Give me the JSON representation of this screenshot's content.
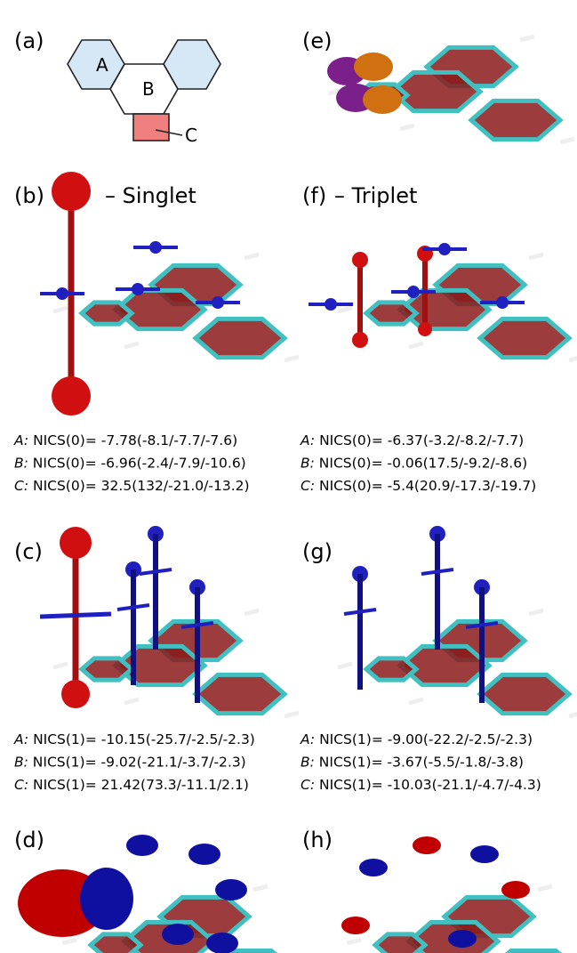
{
  "panel_labels": [
    "(a)",
    "(b)",
    "(c)",
    "(d)",
    "(e)",
    "(f)",
    "(g)",
    "(h)"
  ],
  "scheme_rings": [
    "A",
    "B",
    "C"
  ],
  "titles": {
    "singlet": "– Singlet",
    "triplet": "– Triplet"
  },
  "nics": {
    "singlet_0": [
      {
        "ring": "A:",
        "text": "NICS(0)= -7.78(-8.1/-7.7/-7.6)"
      },
      {
        "ring": "B:",
        "text": "NICS(0)= -6.96(-2.4/-7.9/-10.6)"
      },
      {
        "ring": "C:",
        "text": "NICS(0)= 32.5(132/-21.0/-13.2)"
      }
    ],
    "triplet_0": [
      {
        "ring": "A:",
        "text": "NICS(0)= -6.37(-3.2/-8.2/-7.7)"
      },
      {
        "ring": "B:",
        "text": "NICS(0)= -0.06(17.5/-9.2/-8.6)"
      },
      {
        "ring": "C:",
        "text": "NICS(0)= -5.4(20.9/-17.3/-19.7)"
      }
    ],
    "singlet_1": [
      {
        "ring": "A:",
        "text": "NICS(1)= -10.15(-25.7/-2.5/-2.3)"
      },
      {
        "ring": "B:",
        "text": "NICS(1)= -9.02(-21.1/-3.7/-2.3)"
      },
      {
        "ring": "C:",
        "text": "NICS(1)= 21.42(73.3/-11.1/2.1)"
      }
    ],
    "triplet_1": [
      {
        "ring": "A:",
        "text": "NICS(1)= -9.00(-22.2/-2.5/-2.3)"
      },
      {
        "ring": "B:",
        "text": "NICS(1)= -3.67(-5.5/-1.8/-3.8)"
      },
      {
        "ring": "C:",
        "text": "NICS(1)= -10.03(-21.1/-4.7/-4.3)"
      }
    ]
  }
}
